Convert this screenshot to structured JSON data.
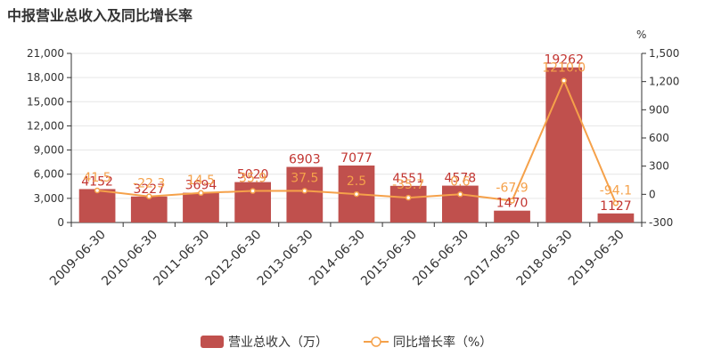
{
  "title": "中报营业总收入及同比增长率",
  "colors": {
    "bar": "#c0504d",
    "bar_label": "#c23531",
    "line": "#f5a14a",
    "axis": "#333333"
  },
  "chart_data": {
    "type": "bar",
    "title": "中报营业总收入及同比增长率",
    "categories": [
      "2009-06-30",
      "2010-06-30",
      "2011-06-30",
      "2012-06-30",
      "2013-06-30",
      "2014-06-30",
      "2015-06-30",
      "2016-06-30",
      "2017-06-30",
      "2018-06-30",
      "2019-06-30"
    ],
    "series": [
      {
        "name": "营业总收入（万）",
        "type": "bar",
        "axis": "left",
        "values": [
          4152,
          3227,
          3694,
          5020,
          6903,
          7077,
          4551,
          4578,
          1470,
          19262,
          1127
        ],
        "labels": [
          "4152",
          "3227",
          "3694",
          "5020",
          "6903",
          "7077",
          "4551",
          "4578",
          "1470",
          "19262",
          "1127"
        ]
      },
      {
        "name": "同比增长率（%）",
        "type": "line",
        "axis": "right",
        "values": [
          41.5,
          -22.3,
          14.5,
          35.9,
          37.5,
          2.5,
          -35.7,
          0.6,
          -67.9,
          1210.0,
          -94.1
        ],
        "labels": [
          "41.5",
          "-22.3",
          "14.5",
          "35.9",
          "37.5",
          "2.5",
          "-35.7",
          "0.6",
          "-67.9",
          "1210.0",
          "-94.1"
        ]
      }
    ],
    "y_left": {
      "ticks": [
        "0",
        "3,000",
        "6,000",
        "9,000",
        "12,000",
        "15,000",
        "18,000",
        "21,000"
      ],
      "ylim": [
        0,
        21000
      ]
    },
    "y_right": {
      "unit": "%",
      "ticks": [
        "-300",
        "0",
        "300",
        "600",
        "900",
        "1,200",
        "1,500"
      ],
      "ylim": [
        -300,
        1500
      ]
    },
    "grid": true,
    "legend_position": "bottom-center"
  }
}
